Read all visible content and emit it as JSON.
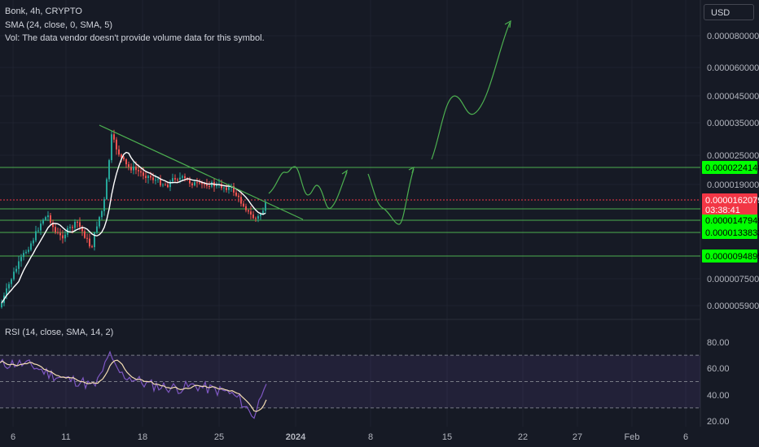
{
  "legend": {
    "symbol_line": "Bonk, 4h, CRYPTO",
    "sma_line": "SMA (24, close, 0, SMA, 5)",
    "vol_line": "Vol: The data vendor doesn't provide volume data for this symbol."
  },
  "rsi_legend": "RSI (14, close, SMA, 14, 2)",
  "currency_button": "USD",
  "colors": {
    "background": "#161a25",
    "up_candle": "#26a69a",
    "down_candle": "#ef5350",
    "sma": "#ffffff",
    "drawing": "#4caf50",
    "price_label": "#f23645",
    "level_label": "#00ff00",
    "rsi_line": "#7e57c2",
    "rsi_sma": "#f5deb3",
    "rsi_band": "#7e57c2"
  },
  "chart_data": {
    "type": "candlestick",
    "symbol": "Bonk",
    "interval": "4h",
    "exchange": "CRYPTO",
    "y_scale": "log",
    "price_ticks": [
      "0.0000800000",
      "0.0000600000",
      "0.0000450000",
      "0.0000350000",
      "0.0000250000",
      "0.0000190000",
      "0.0000075000",
      "0.0000059000"
    ],
    "horizontal_levels": [
      "0.0000224148",
      "0.0000147949",
      "0.0000133833",
      "0.0000094895"
    ],
    "current_price": "0.0000162079",
    "countdown": "03:38:41",
    "x_ticks": [
      "6",
      "11",
      "18",
      "25",
      "2024",
      "8",
      "15",
      "22",
      "27",
      "Feb",
      "6"
    ],
    "rsi": {
      "ticks": [
        "80.00",
        "60.00",
        "40.00",
        "20.00"
      ],
      "upper_band": 70,
      "middle": 50,
      "lower_band": 30
    }
  }
}
